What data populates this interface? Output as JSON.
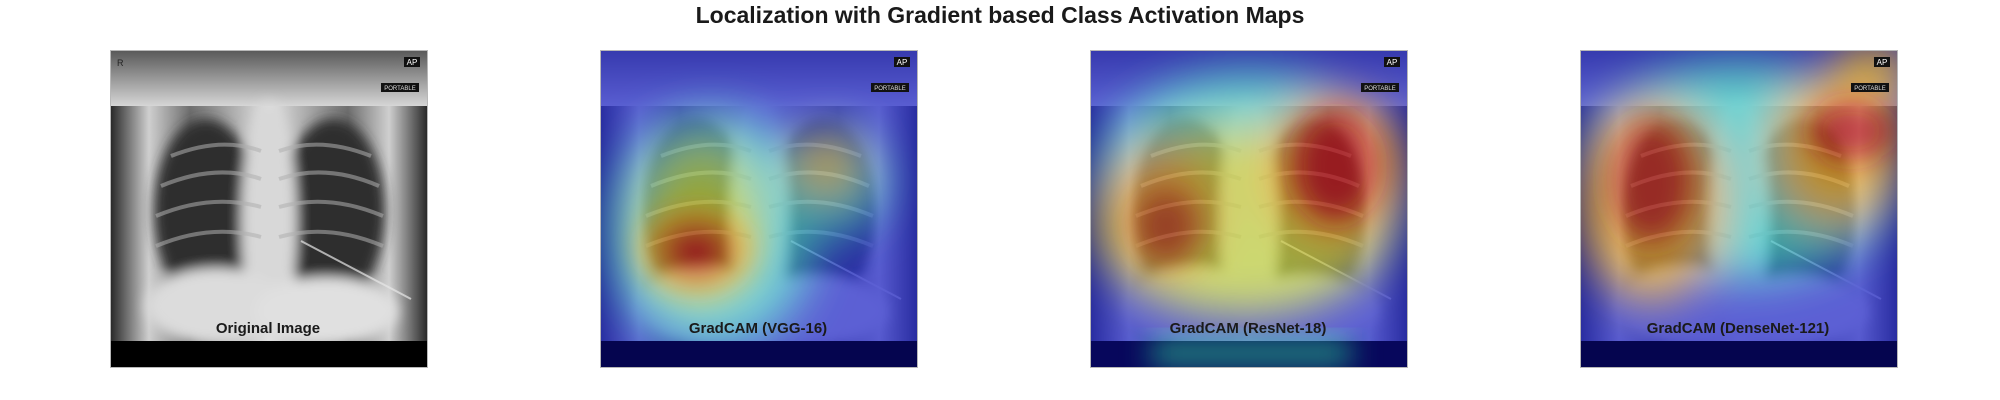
{
  "figure": {
    "title": "Localization with Gradient based Class Activation Maps"
  },
  "panels": [
    {
      "caption": "Original Image"
    },
    {
      "caption": "GradCAM (VGG-16)"
    },
    {
      "caption": "GradCAM (ResNet-18)"
    },
    {
      "caption": "GradCAM (DenseNet-121)"
    }
  ],
  "xray_overlay": {
    "orientation_marker": "AP",
    "corner_marker": "R",
    "tag_text": "PORTABLE"
  },
  "colors": {
    "heat_hot": "#c0141a",
    "heat_warm": "#f3c728",
    "heat_mid": "#3ed1d6",
    "heat_cold": "#1d27c4",
    "heat_base": "#08086e"
  }
}
